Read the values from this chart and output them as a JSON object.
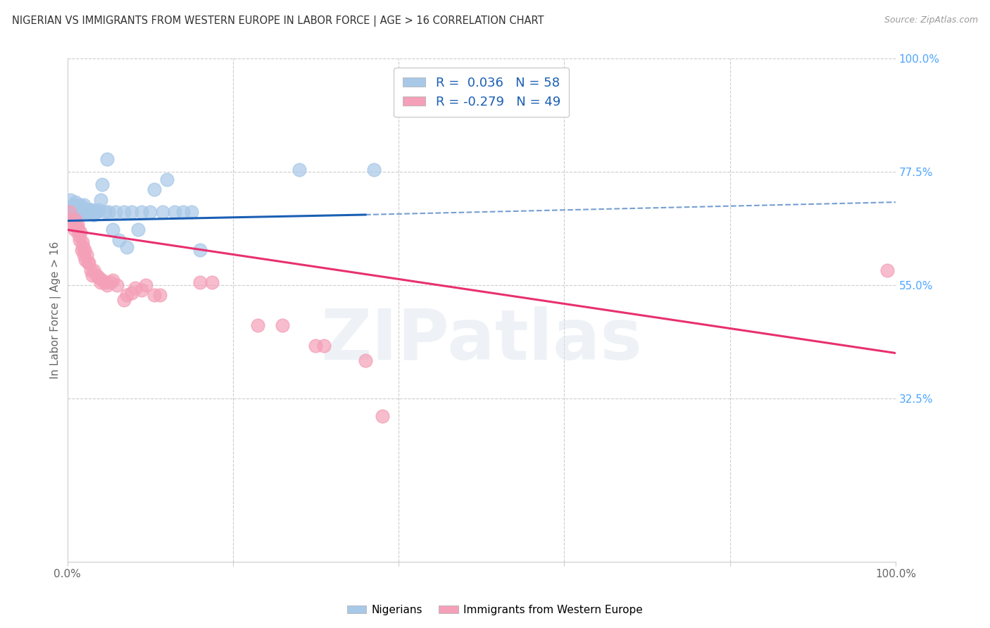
{
  "title": "NIGERIAN VS IMMIGRANTS FROM WESTERN EUROPE IN LABOR FORCE | AGE > 16 CORRELATION CHART",
  "source": "Source: ZipAtlas.com",
  "ylabel": "In Labor Force | Age > 16",
  "watermark": "ZIPatlas",
  "x_min": 0.0,
  "x_max": 1.0,
  "y_min": 0.0,
  "y_max": 1.0,
  "x_tick_labels": [
    "0.0%",
    "",
    "",
    "",
    "",
    "100.0%"
  ],
  "x_tick_positions": [
    0.0,
    0.2,
    0.4,
    0.6,
    0.8,
    1.0
  ],
  "y_tick_labels_right": [
    "100.0%",
    "77.5%",
    "55.0%",
    "32.5%"
  ],
  "y_tick_positions_right": [
    1.0,
    0.775,
    0.55,
    0.325
  ],
  "blue_color": "#a8c8e8",
  "pink_color": "#f4a0b8",
  "blue_line_color": "#1a5fb4",
  "pink_line_color": "#e83070",
  "blue_trend": [
    0.0,
    0.678,
    0.36,
    0.69
  ],
  "blue_dash": [
    0.36,
    0.69,
    1.0,
    0.715
  ],
  "pink_trend": [
    0.0,
    0.66,
    1.0,
    0.415
  ],
  "blue_points": [
    [
      0.003,
      0.7
    ],
    [
      0.004,
      0.72
    ],
    [
      0.005,
      0.695
    ],
    [
      0.006,
      0.7
    ],
    [
      0.007,
      0.705
    ],
    [
      0.008,
      0.71
    ],
    [
      0.009,
      0.695
    ],
    [
      0.01,
      0.7
    ],
    [
      0.01,
      0.715
    ],
    [
      0.011,
      0.7
    ],
    [
      0.012,
      0.695
    ],
    [
      0.012,
      0.705
    ],
    [
      0.013,
      0.7
    ],
    [
      0.014,
      0.695
    ],
    [
      0.015,
      0.7
    ],
    [
      0.015,
      0.71
    ],
    [
      0.016,
      0.695
    ],
    [
      0.017,
      0.7
    ],
    [
      0.018,
      0.695
    ],
    [
      0.018,
      0.705
    ],
    [
      0.019,
      0.7
    ],
    [
      0.02,
      0.695
    ],
    [
      0.02,
      0.71
    ],
    [
      0.021,
      0.7
    ],
    [
      0.022,
      0.695
    ],
    [
      0.023,
      0.7
    ],
    [
      0.024,
      0.695
    ],
    [
      0.025,
      0.7
    ],
    [
      0.026,
      0.695
    ],
    [
      0.027,
      0.7
    ],
    [
      0.028,
      0.695
    ],
    [
      0.03,
      0.7
    ],
    [
      0.032,
      0.69
    ],
    [
      0.035,
      0.695
    ],
    [
      0.038,
      0.7
    ],
    [
      0.04,
      0.72
    ],
    [
      0.042,
      0.75
    ],
    [
      0.045,
      0.695
    ],
    [
      0.048,
      0.8
    ],
    [
      0.05,
      0.695
    ],
    [
      0.055,
      0.66
    ],
    [
      0.058,
      0.695
    ],
    [
      0.062,
      0.64
    ],
    [
      0.068,
      0.695
    ],
    [
      0.072,
      0.625
    ],
    [
      0.078,
      0.695
    ],
    [
      0.085,
      0.66
    ],
    [
      0.09,
      0.695
    ],
    [
      0.1,
      0.695
    ],
    [
      0.105,
      0.74
    ],
    [
      0.115,
      0.695
    ],
    [
      0.12,
      0.76
    ],
    [
      0.13,
      0.695
    ],
    [
      0.14,
      0.695
    ],
    [
      0.15,
      0.695
    ],
    [
      0.16,
      0.62
    ],
    [
      0.28,
      0.78
    ],
    [
      0.37,
      0.78
    ]
  ],
  "pink_points": [
    [
      0.003,
      0.695
    ],
    [
      0.005,
      0.68
    ],
    [
      0.007,
      0.67
    ],
    [
      0.009,
      0.66
    ],
    [
      0.01,
      0.68
    ],
    [
      0.011,
      0.665
    ],
    [
      0.012,
      0.67
    ],
    [
      0.013,
      0.66
    ],
    [
      0.014,
      0.65
    ],
    [
      0.015,
      0.64
    ],
    [
      0.016,
      0.655
    ],
    [
      0.017,
      0.62
    ],
    [
      0.018,
      0.635
    ],
    [
      0.019,
      0.625
    ],
    [
      0.02,
      0.61
    ],
    [
      0.021,
      0.62
    ],
    [
      0.022,
      0.6
    ],
    [
      0.023,
      0.61
    ],
    [
      0.025,
      0.595
    ],
    [
      0.026,
      0.595
    ],
    [
      0.028,
      0.58
    ],
    [
      0.03,
      0.57
    ],
    [
      0.032,
      0.58
    ],
    [
      0.035,
      0.57
    ],
    [
      0.038,
      0.565
    ],
    [
      0.04,
      0.555
    ],
    [
      0.042,
      0.56
    ],
    [
      0.045,
      0.555
    ],
    [
      0.048,
      0.55
    ],
    [
      0.052,
      0.555
    ],
    [
      0.055,
      0.56
    ],
    [
      0.06,
      0.55
    ],
    [
      0.068,
      0.52
    ],
    [
      0.072,
      0.53
    ],
    [
      0.078,
      0.535
    ],
    [
      0.082,
      0.545
    ],
    [
      0.09,
      0.54
    ],
    [
      0.095,
      0.55
    ],
    [
      0.105,
      0.53
    ],
    [
      0.112,
      0.53
    ],
    [
      0.16,
      0.555
    ],
    [
      0.175,
      0.555
    ],
    [
      0.23,
      0.47
    ],
    [
      0.26,
      0.47
    ],
    [
      0.3,
      0.43
    ],
    [
      0.31,
      0.43
    ],
    [
      0.36,
      0.4
    ],
    [
      0.38,
      0.29
    ],
    [
      0.99,
      0.58
    ]
  ]
}
